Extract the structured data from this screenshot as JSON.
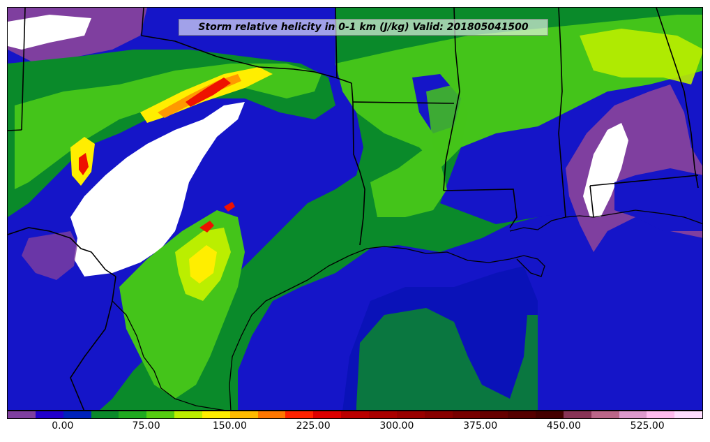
{
  "title": "Storm relative helicity in 0-1 km (J/kg) Valid: 201805041500",
  "colorbar": {
    "colors": [
      "#7f3f9f",
      "#2200cc",
      "#0022bb",
      "#0a8a2a",
      "#1faa1f",
      "#55cc11",
      "#bbee00",
      "#ffee00",
      "#ffbb00",
      "#ff7700",
      "#ff2200",
      "#dd0000",
      "#bb0000",
      "#aa0000",
      "#990000",
      "#880000",
      "#770000",
      "#660000",
      "#550000",
      "#440000",
      "#883355",
      "#bb6688",
      "#dd99cc",
      "#ffbbee",
      "#ffddff"
    ],
    "tick_labels": [
      "0.00",
      "75.00",
      "150.00",
      "225.00",
      "300.00",
      "375.00",
      "450.00",
      "525.00"
    ],
    "tick_values": [
      0,
      75,
      150,
      225,
      300,
      375,
      450,
      525
    ],
    "range": [
      -50,
      575
    ]
  },
  "map": {
    "colors": {
      "water_blue": "#1515c8",
      "deep_blue": "#0a12b8",
      "green": "#0a8a2a",
      "light_green": "#44c41a",
      "yellow_green": "#bbee00",
      "yellow": "#ffee00",
      "orange": "#ff9900",
      "red": "#ee1100",
      "purple": "#7f3f9f",
      "white": "#ffffff",
      "border": "#000000"
    }
  }
}
